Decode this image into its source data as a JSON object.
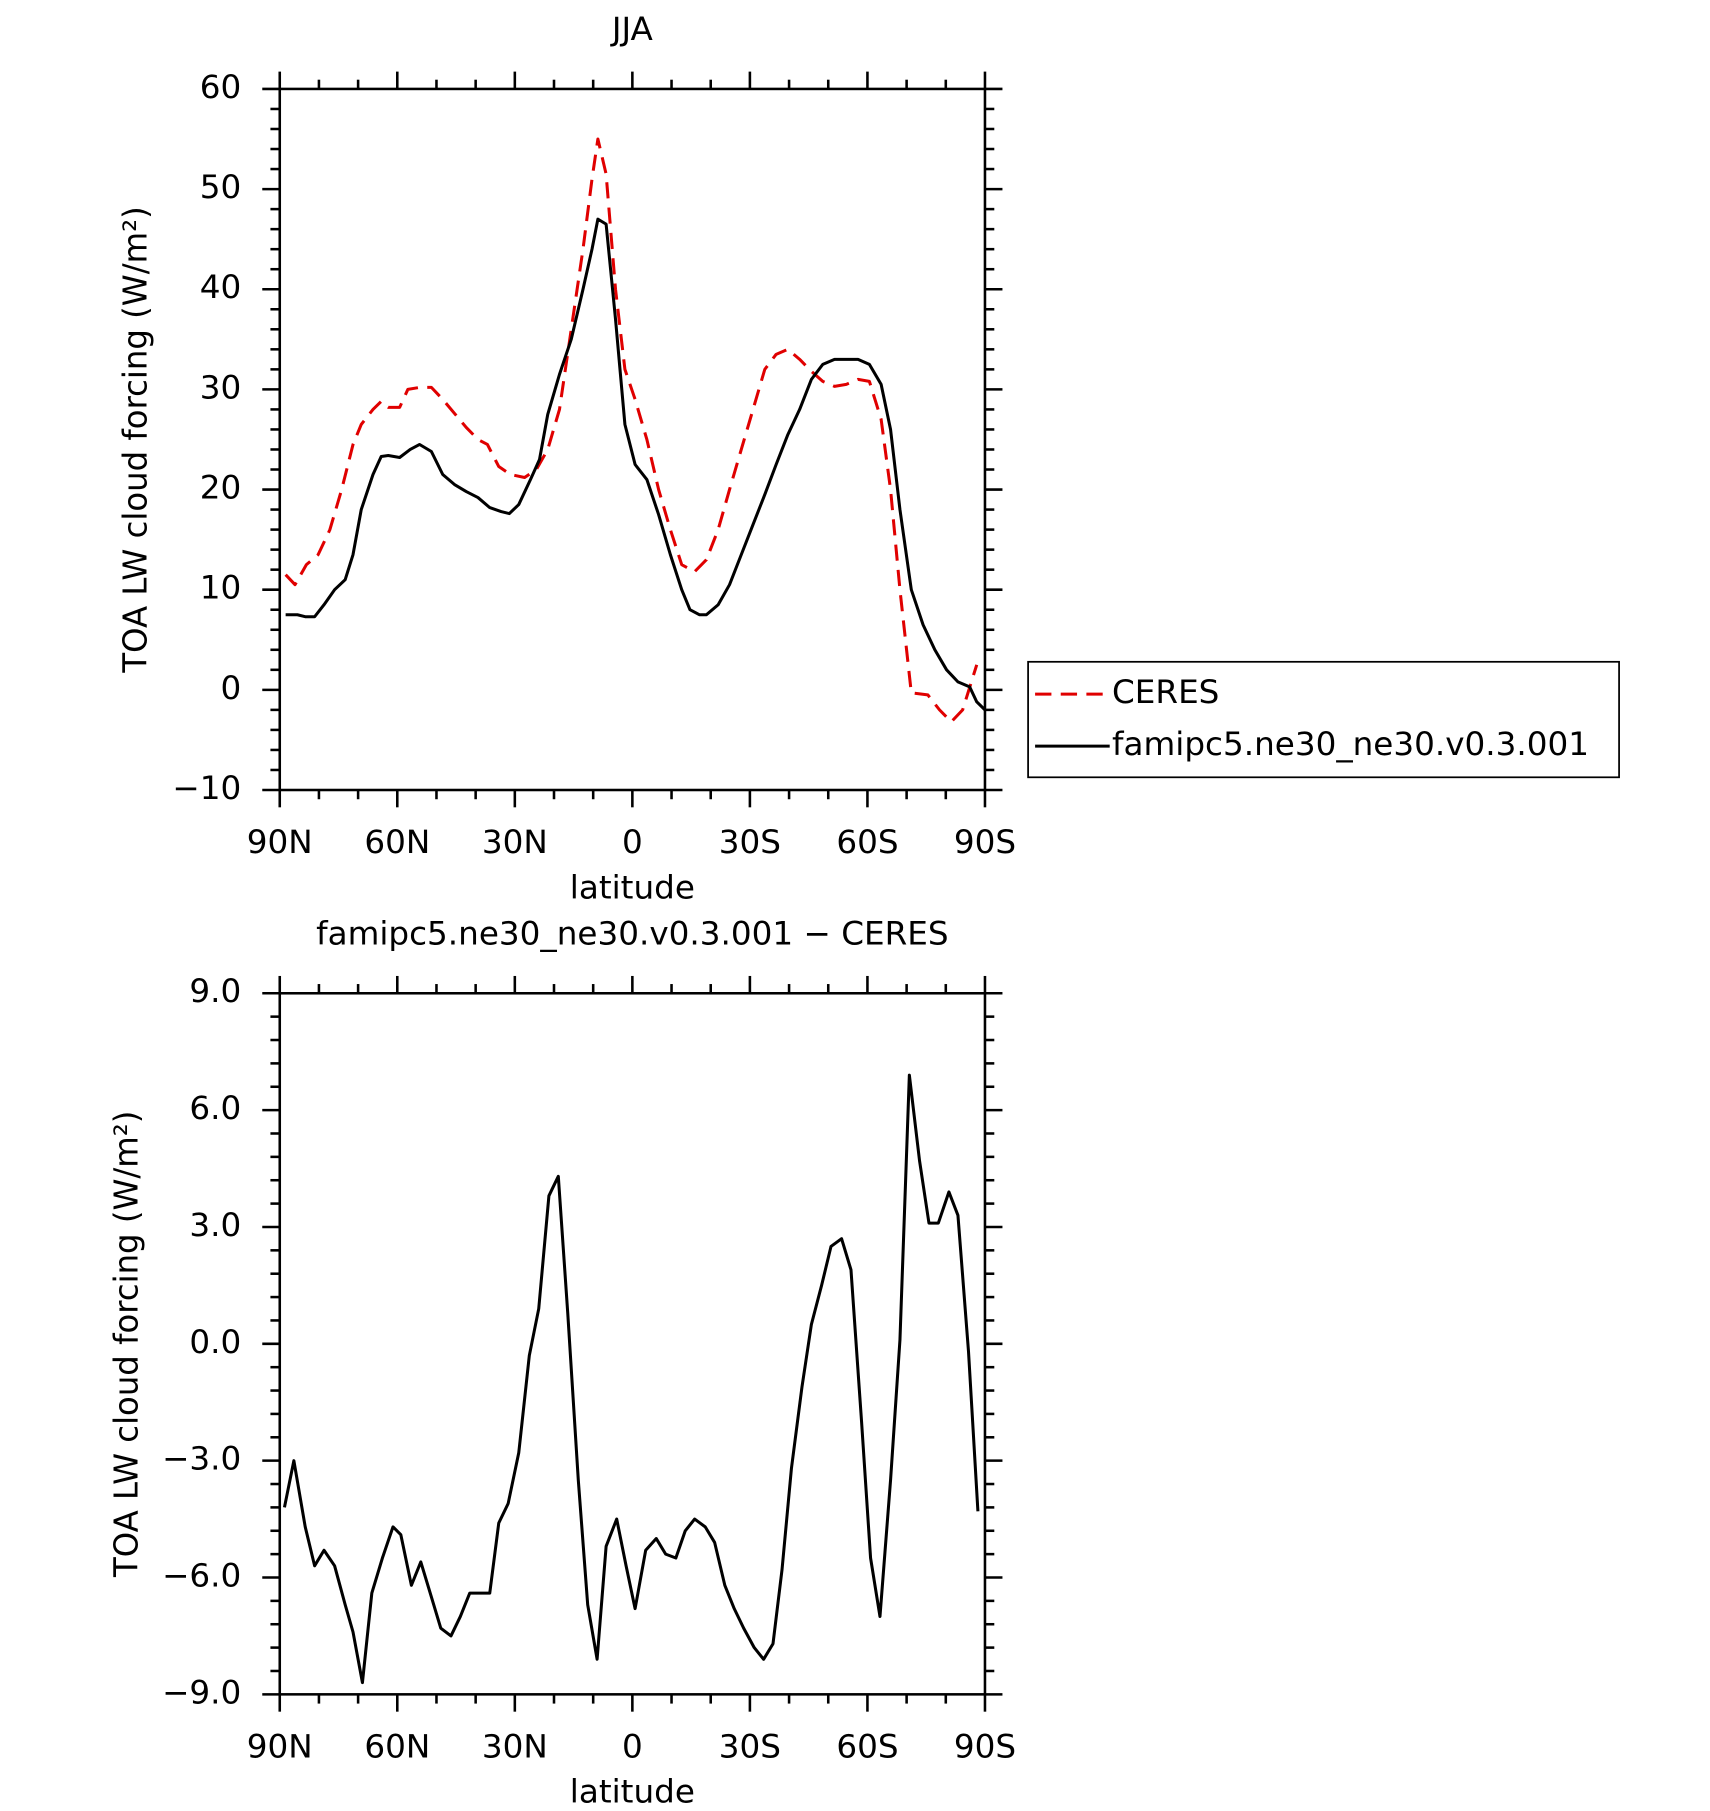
{
  "chart_data": [
    {
      "type": "line",
      "title": "JJA",
      "xlabel": "latitude",
      "ylabel": "TOA LW cloud forcing (W/m²)",
      "xlim": [
        90,
        -90
      ],
      "xticks": [
        {
          "value": 90,
          "label": "90N"
        },
        {
          "value": 60,
          "label": "60N"
        },
        {
          "value": 30,
          "label": "30N"
        },
        0,
        {
          "value": -30,
          "label": "30S"
        },
        {
          "value": -60,
          "label": "60S"
        },
        {
          "value": -90,
          "label": "90S"
        }
      ],
      "ylim": [
        -10,
        60
      ],
      "yticks": [
        {
          "value": -10,
          "label": "−10"
        },
        0,
        10,
        20,
        30,
        40,
        50,
        60
      ],
      "legend": "right",
      "series": [
        {
          "name": "CERES",
          "color": "#e00000",
          "dash": "dashed",
          "x": [
            88.5,
            86.1,
            83.2,
            80.2,
            77.2,
            74.2,
            71.3,
            69.2,
            66.2,
            64.1,
            62.3,
            59.4,
            57.3,
            54.3,
            51.3,
            48.4,
            45.4,
            42.4,
            39.4,
            37.0,
            34.1,
            31.1,
            27.5,
            24.5,
            21.6,
            18.6,
            15.6,
            12.6,
            10.3,
            8.8,
            6.7,
            4.3,
            1.9,
            -0.7,
            -3.7,
            -6.7,
            -9.7,
            -12.6,
            -15.9,
            -18.9,
            -21.9,
            -24.8,
            -27.8,
            -30.8,
            -33.8,
            -36.7,
            -39.7,
            -42.7,
            -45.7,
            -48.6,
            -51.6,
            -54.6,
            -57.6,
            -60.5,
            -63.5,
            -65.9,
            -68.3,
            -71.2,
            -75.4,
            -78.4,
            -81.4,
            -84.3,
            -87.9
          ],
          "values": [
            11.5,
            10.5,
            12.5,
            13.5,
            16,
            20,
            24.5,
            26.5,
            28,
            28.8,
            28.2,
            28.2,
            30,
            30.2,
            30.2,
            29,
            27.6,
            26.2,
            25,
            24.5,
            22.3,
            21.5,
            21.2,
            22,
            24,
            28,
            36,
            44,
            51,
            55,
            51.5,
            40,
            32,
            29,
            25,
            20,
            16,
            12.5,
            11.8,
            13,
            16,
            20,
            24,
            28,
            32,
            33.5,
            34,
            33,
            31.8,
            30.8,
            30.3,
            30.5,
            31,
            30.8,
            27,
            20,
            10,
            -0.3,
            -0.5,
            -2,
            -3.2,
            -2,
            2.5
          ]
        },
        {
          "name": "famipc5.ne30_ne30.v0.3.001",
          "color": "#000000",
          "dash": "solid",
          "x": [
            88.5,
            85.5,
            83.5,
            81.1,
            78.7,
            76.0,
            73.3,
            71.3,
            69.2,
            66.2,
            64.1,
            62.3,
            59.4,
            56.7,
            54.3,
            51.3,
            48.4,
            45.4,
            42.4,
            39.4,
            36.4,
            33.5,
            31.4,
            29.0,
            26.0,
            23.7,
            21.6,
            18.6,
            15.6,
            12.6,
            10.3,
            8.8,
            6.7,
            4.3,
            1.9,
            -0.7,
            -3.7,
            -6.7,
            -9.7,
            -12.6,
            -14.7,
            -17.1,
            -18.9,
            -21.9,
            -24.8,
            -27.8,
            -30.8,
            -33.8,
            -36.7,
            -39.7,
            -42.7,
            -45.7,
            -48.6,
            -51.6,
            -54.6,
            -57.6,
            -60.5,
            -63.5,
            -65.9,
            -68.3,
            -71.2,
            -74.2,
            -77.2,
            -80.2,
            -83.1,
            -86.1,
            -87.9,
            -90
          ],
          "values": [
            7.5,
            7.5,
            7.3,
            7.3,
            8.5,
            10,
            11,
            13.5,
            18,
            21.5,
            23.3,
            23.4,
            23.2,
            24,
            24.5,
            23.8,
            21.5,
            20.5,
            19.8,
            19.2,
            18.2,
            17.8,
            17.6,
            18.5,
            21,
            23,
            27.5,
            31.5,
            35,
            40,
            44,
            47,
            46.5,
            37,
            26.5,
            22.5,
            21,
            17.5,
            13.5,
            10,
            8,
            7.5,
            7.5,
            8.5,
            10.5,
            13.5,
            16.5,
            19.5,
            22.5,
            25.5,
            28,
            31,
            32.5,
            33,
            33,
            33,
            32.5,
            30.5,
            26,
            18,
            10,
            6.5,
            4,
            2,
            0.8,
            0.3,
            -1.2,
            -2
          ]
        }
      ]
    },
    {
      "type": "line",
      "title": "famipc5.ne30_ne30.v0.3.001 − CERES",
      "xlabel": "latitude",
      "ylabel": "TOA LW cloud forcing (W/m²)",
      "xlim": [
        90,
        -90
      ],
      "xticks": [
        {
          "value": 90,
          "label": "90N"
        },
        {
          "value": 60,
          "label": "60N"
        },
        {
          "value": 30,
          "label": "30N"
        },
        0,
        {
          "value": -30,
          "label": "30S"
        },
        {
          "value": -60,
          "label": "60S"
        },
        {
          "value": -90,
          "label": "90S"
        }
      ],
      "ylim": [
        -9,
        9
      ],
      "yticks": [
        {
          "value": -9,
          "label": "−9.0"
        },
        {
          "value": -6,
          "label": "−6.0"
        },
        {
          "value": -3,
          "label": "−3.0"
        },
        {
          "value": 0,
          "label": "0.0"
        },
        {
          "value": 3,
          "label": "3.0"
        },
        {
          "value": 6,
          "label": "6.0"
        },
        {
          "value": 9,
          "label": "9.0"
        }
      ],
      "series": [
        {
          "color": "#000000",
          "dash": "solid",
          "x": [
            88.8,
            86.4,
            83.5,
            81.1,
            78.7,
            76.0,
            73.3,
            71.3,
            68.9,
            66.5,
            63.8,
            61.1,
            59.1,
            56.4,
            54.0,
            51.3,
            48.9,
            46.3,
            43.9,
            41.5,
            39.1,
            36.4,
            34.1,
            31.7,
            29.0,
            26.3,
            23.9,
            21.3,
            18.9,
            16.5,
            13.8,
            11.4,
            9.0,
            6.7,
            4.0,
            1.6,
            -0.7,
            -3.4,
            -6.1,
            -8.5,
            -11.1,
            -13.5,
            -15.9,
            -18.6,
            -21.0,
            -23.6,
            -26.0,
            -28.4,
            -31.1,
            -33.5,
            -35.9,
            -38.2,
            -40.6,
            -43.3,
            -45.7,
            -48.3,
            -50.7,
            -53.4,
            -55.8,
            -58.5,
            -60.8,
            -63.2,
            -65.9,
            -68.3,
            -70.7,
            -73.3,
            -75.7,
            -78.1,
            -80.8,
            -83.1,
            -85.8,
            -88.2
          ],
          "values": [
            -4.2,
            -3.0,
            -4.7,
            -5.7,
            -5.3,
            -5.7,
            -6.7,
            -7.4,
            -8.7,
            -6.4,
            -5.5,
            -4.7,
            -4.9,
            -6.2,
            -5.6,
            -6.5,
            -7.3,
            -7.5,
            -7.0,
            -6.4,
            -6.4,
            -6.4,
            -4.6,
            -4.1,
            -2.8,
            -0.3,
            0.9,
            3.8,
            4.3,
            0.8,
            -3.5,
            -6.7,
            -8.1,
            -5.2,
            -4.5,
            -5.7,
            -6.8,
            -5.3,
            -5.0,
            -5.4,
            -5.5,
            -4.8,
            -4.5,
            -4.7,
            -5.1,
            -6.2,
            -6.8,
            -7.3,
            -7.8,
            -8.1,
            -7.7,
            -5.8,
            -3.2,
            -1.1,
            0.5,
            1.5,
            2.5,
            2.7,
            1.9,
            -2.0,
            -5.5,
            -7.0,
            -3.5,
            0.1,
            6.9,
            4.7,
            3.1,
            3.1,
            3.9,
            3.3,
            -0.2,
            -4.3
          ]
        }
      ]
    }
  ]
}
